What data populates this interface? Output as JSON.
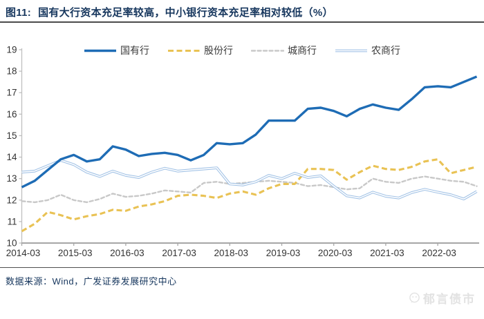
{
  "header": {
    "title_prefix": "图11:",
    "title": "国有大行资本充足率较高，中小银行资本充足率相对较低（%）"
  },
  "footer": {
    "source": "数据来源：Wind，广发证券发展研究中心"
  },
  "watermark": {
    "label": "郁言债市",
    "icon": "wechat-chat-icon"
  },
  "colors": {
    "title_navy": "#17375E",
    "axis_gray": "#a6a6a6",
    "tick_text": "#333333",
    "rule_dark": "#4a4a4a",
    "watermark_gray": "#e2e2e2"
  },
  "chart_data": {
    "type": "line",
    "title": "国有大行资本充足率较高，中小银行资本充足率相对较低（%）",
    "xlabel": "",
    "ylabel": "",
    "ylim": [
      10,
      19
    ],
    "y_ticks": [
      10,
      11,
      12,
      13,
      14,
      15,
      16,
      17,
      18,
      19
    ],
    "grid": false,
    "legend_position": "top",
    "x": [
      "2014-03",
      "2014-06",
      "2014-09",
      "2014-12",
      "2015-03",
      "2015-06",
      "2015-09",
      "2015-12",
      "2016-03",
      "2016-06",
      "2016-09",
      "2016-12",
      "2017-03",
      "2017-06",
      "2017-09",
      "2017-12",
      "2018-03",
      "2018-06",
      "2018-09",
      "2018-12",
      "2019-03",
      "2019-06",
      "2019-09",
      "2019-12",
      "2020-03",
      "2020-06",
      "2020-09",
      "2020-12",
      "2021-03",
      "2021-06",
      "2021-09",
      "2021-12",
      "2022-03",
      "2022-06",
      "2022-09",
      "2022-12"
    ],
    "x_axis_tick_indices": [
      0,
      4,
      8,
      12,
      16,
      20,
      24,
      28,
      32
    ],
    "x_axis_tick_labels": [
      "2014-03",
      "2015-03",
      "2016-03",
      "2017-03",
      "2018-03",
      "2019-03",
      "2020-03",
      "2021-03",
      "2022-03"
    ],
    "series": [
      {
        "id": "state-owned-banks",
        "name": "国有行",
        "color": "#1E6CB5",
        "style": "solid-thick",
        "values": [
          12.6,
          12.9,
          13.4,
          13.9,
          14.1,
          13.8,
          13.9,
          14.5,
          14.35,
          14.05,
          14.15,
          14.2,
          14.1,
          13.85,
          14.1,
          14.65,
          14.6,
          14.65,
          15.05,
          15.7,
          15.7,
          15.7,
          16.25,
          16.3,
          16.15,
          15.9,
          16.25,
          16.45,
          16.3,
          16.2,
          16.7,
          17.25,
          17.3,
          17.25,
          17.5,
          17.75
        ]
      },
      {
        "id": "joint-stock-banks",
        "name": "股份行",
        "color": "#E9C254",
        "style": "dashed",
        "values": [
          10.55,
          10.9,
          11.45,
          11.3,
          11.1,
          11.25,
          11.35,
          11.55,
          11.5,
          11.7,
          11.8,
          11.95,
          12.2,
          12.25,
          12.2,
          12.1,
          12.3,
          12.4,
          12.25,
          12.55,
          12.75,
          12.75,
          13.45,
          13.45,
          13.4,
          12.95,
          13.3,
          13.6,
          13.45,
          13.4,
          13.55,
          13.8,
          13.9,
          13.25,
          13.4,
          13.55
        ]
      },
      {
        "id": "city-commercial-banks",
        "name": "城商行",
        "color": "#C8C8C8",
        "style": "dotted",
        "values": [
          11.95,
          11.9,
          12.0,
          12.25,
          12.0,
          11.9,
          12.05,
          12.3,
          12.15,
          12.2,
          12.3,
          12.45,
          12.4,
          12.35,
          12.8,
          12.85,
          12.75,
          12.8,
          12.85,
          12.9,
          12.85,
          12.8,
          12.65,
          12.7,
          12.6,
          12.5,
          12.55,
          13.0,
          12.85,
          12.8,
          13.0,
          13.1,
          13.0,
          12.9,
          12.85,
          12.65
        ]
      },
      {
        "id": "rural-commercial-banks",
        "name": "农商行",
        "color": "#A3C3E6",
        "style": "double-line",
        "values": [
          13.3,
          13.35,
          13.6,
          13.85,
          13.65,
          13.3,
          13.1,
          13.35,
          13.15,
          13.05,
          13.3,
          13.48,
          13.35,
          13.4,
          13.45,
          13.5,
          12.75,
          12.7,
          12.85,
          13.15,
          13.0,
          13.25,
          13.05,
          13.13,
          12.65,
          12.2,
          12.1,
          12.37,
          12.18,
          12.1,
          12.35,
          12.5,
          12.37,
          12.25,
          12.05,
          12.4
        ]
      }
    ]
  }
}
